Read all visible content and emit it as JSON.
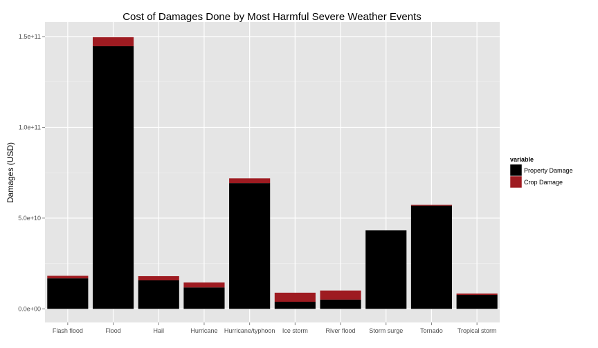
{
  "chart_data": {
    "type": "bar",
    "stacked": true,
    "title": "Cost of Damages Done by Most Harmful Severe Weather Events",
    "xlabel": "",
    "ylabel": "Damages (USD)",
    "ylim": [
      -7500000000,
      158000000000
    ],
    "yticks": [
      0,
      50000000000,
      100000000000,
      150000000000
    ],
    "ytick_labels": [
      "0.0e+00",
      "5.0e+10",
      "1.0e+11",
      "1.5e+11"
    ],
    "categories": [
      "Flash flood",
      "Flood",
      "Hail",
      "Hurricane",
      "Hurricane/typhoon",
      "Ice storm",
      "River flood",
      "Storm surge",
      "Tornado",
      "Tropical storm"
    ],
    "series": [
      {
        "name": "Property Damage",
        "color": "#000000",
        "values": [
          16800000000,
          144700000000,
          15700000000,
          11800000000,
          69300000000,
          3900000000,
          5100000000,
          43300000000,
          56900000000,
          7700000000
        ]
      },
      {
        "name": "Crop Damage",
        "color": "#9e1b21",
        "values": [
          1400000000,
          5000000000,
          2300000000,
          2700000000,
          2600000000,
          5000000000,
          5000000000,
          0,
          400000000,
          700000000
        ]
      }
    ],
    "legend": {
      "title": "variable",
      "placement": "right"
    },
    "grid": true,
    "panel_color": "#e5e5e5"
  }
}
